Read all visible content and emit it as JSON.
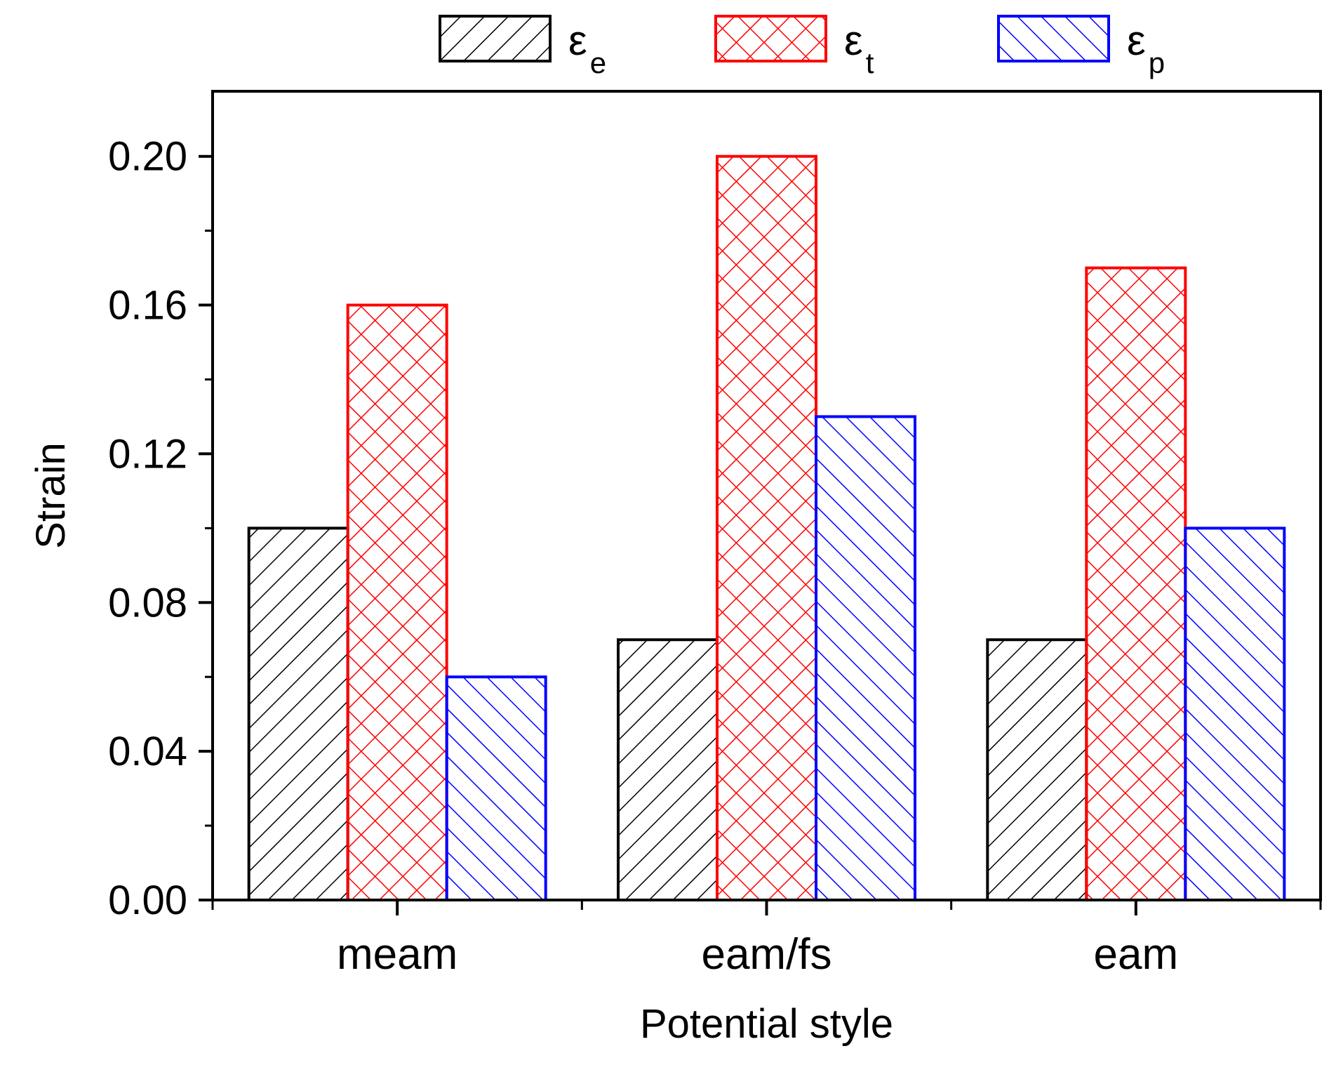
{
  "chart_data": {
    "type": "bar",
    "title": "",
    "xlabel": "Potential style",
    "ylabel": "Strain",
    "categories": [
      "meam",
      "eam/fs",
      "eam"
    ],
    "series": [
      {
        "name": "ε",
        "sub": "e",
        "color": "#000000",
        "pattern": "diag-up",
        "values": [
          0.1,
          0.07,
          0.07
        ]
      },
      {
        "name": "ε",
        "sub": "t",
        "color": "#ff0000",
        "pattern": "crosshatch",
        "values": [
          0.16,
          0.2,
          0.17
        ]
      },
      {
        "name": "ε",
        "sub": "p",
        "color": "#0000ff",
        "pattern": "diag-down",
        "values": [
          0.06,
          0.13,
          0.1
        ]
      }
    ],
    "ylim": [
      0,
      0.2175
    ],
    "yticks": [
      "0.00",
      "0.04",
      "0.08",
      "0.12",
      "0.16",
      "0.20"
    ],
    "ytick_values": [
      0,
      0.04,
      0.08,
      0.12,
      0.16,
      0.2
    ],
    "legend_position": "top-center",
    "grid": false
  }
}
